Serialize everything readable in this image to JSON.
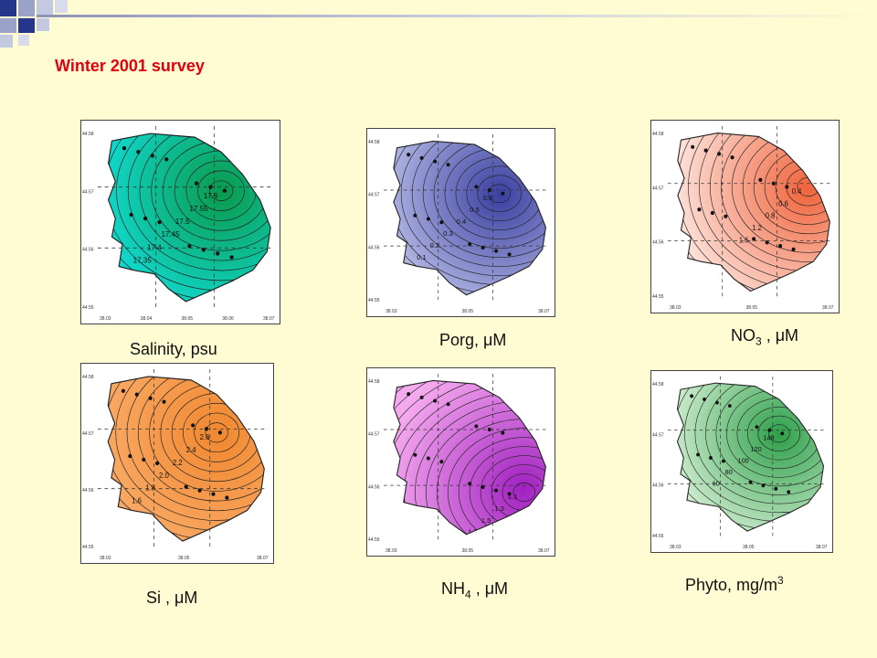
{
  "title": "Winter 2001 survey",
  "axis_y": [
    "44.58",
    "44.57",
    "44.56",
    "44.55"
  ],
  "axis_x": [
    "38.03",
    "38.04",
    "38.05",
    "38.06",
    "38.07"
  ],
  "axis_x_short": [
    "38.03",
    "38.05",
    "38.07"
  ],
  "panels": [
    {
      "name": "salinity",
      "label_main": "Salinity, psu",
      "label_sub": "",
      "label_tail": "",
      "colors": {
        "low": "#12e5e8",
        "high": "#0a9a4c"
      },
      "isoline_labels": [
        "17.6",
        "17.55",
        "17.5",
        "17.45",
        "17.4",
        "17.35",
        "17.3",
        "17.25"
      ]
    },
    {
      "name": "porg",
      "label_main": "Porg, ",
      "label_greek": "μ",
      "label_tail": "M",
      "colors": {
        "low": "#c8cdf0",
        "high": "#3b3fa0"
      },
      "isoline_labels": [
        "0.6",
        "0.5",
        "0.4",
        "0.3",
        "0.2",
        "0.1"
      ]
    },
    {
      "name": "no3",
      "label_main": "NO",
      "label_sub": "3",
      "label_tail": " , μM",
      "colors": {
        "low": "#fde6df",
        "high": "#f0643c"
      },
      "isoline_labels": [
        "0.4",
        "0.6",
        "0.8",
        "1.2",
        "1.6"
      ]
    },
    {
      "name": "si",
      "label_main": "Si , μM",
      "label_sub": "",
      "label_tail": "",
      "colors": {
        "low": "#fbb070",
        "high": "#f08830"
      },
      "isoline_labels": [
        "2.6",
        "2.4",
        "2.2",
        "2.0",
        "1.8",
        "1.6"
      ]
    },
    {
      "name": "nh4",
      "label_main": "NH",
      "label_sub": "4",
      "label_tail": " , μM",
      "colors": {
        "low": "#f4a8ee",
        "high": "#a020c0"
      },
      "isoline_labels": [
        "1.1",
        "1.3",
        "1.5",
        "1.7",
        "1.9",
        "2.1"
      ]
    },
    {
      "name": "phyto",
      "label_main": "Phyto, mg/m",
      "label_sup": "3",
      "label_tail": "",
      "colors": {
        "low": "#eefbe8",
        "high": "#2ea04a"
      },
      "isoline_labels": [
        "140",
        "120",
        "100",
        "80",
        "60"
      ]
    }
  ]
}
